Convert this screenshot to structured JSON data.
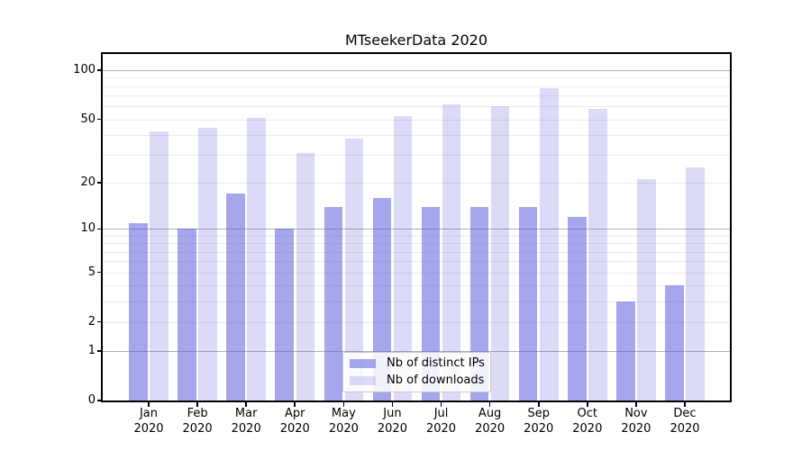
{
  "title": "MTseekerData 2020",
  "colors": {
    "distinct_ips_bar": "rgba(85,85,221,0.52)",
    "downloads_bar": "rgba(85,85,221,0.21)",
    "major_gridline": "#b0b0b0",
    "minor_gridline": "#eaeaea",
    "spine": "#000000",
    "legend_border": "#c8c8c8"
  },
  "legend": {
    "items": [
      {
        "label": "Nb of distinct IPs",
        "series": "distinct_ips"
      },
      {
        "label": "Nb of downloads",
        "series": "downloads"
      }
    ]
  },
  "chart_data": {
    "type": "bar",
    "title": "MTseekerData 2020",
    "categories": [
      "Jan 2020",
      "Feb 2020",
      "Mar 2020",
      "Apr 2020",
      "May 2020",
      "Jun 2020",
      "Jul 2020",
      "Aug 2020",
      "Sep 2020",
      "Oct 2020",
      "Nov 2020",
      "Dec 2020"
    ],
    "series": [
      {
        "name": "Nb of distinct IPs",
        "values": [
          11,
          10,
          17,
          10,
          14,
          16,
          14,
          14,
          14,
          12,
          3,
          4
        ]
      },
      {
        "name": "Nb of downloads",
        "values": [
          42,
          44,
          51,
          31,
          38,
          52,
          62,
          60,
          78,
          58,
          21,
          25
        ]
      }
    ],
    "xlabel": "",
    "ylabel": "",
    "yscale": "log1p",
    "ylim": [
      0,
      126
    ],
    "y_tick_labels": [
      0,
      1,
      2,
      5,
      10,
      20,
      50,
      100
    ],
    "y_major_gridlines": [
      1,
      10,
      100
    ],
    "y_minor_gridlines": [
      2,
      3,
      4,
      5,
      6,
      7,
      8,
      9,
      20,
      30,
      40,
      50,
      60,
      70,
      80,
      90
    ],
    "grid": true,
    "legend_position": "lower center"
  }
}
